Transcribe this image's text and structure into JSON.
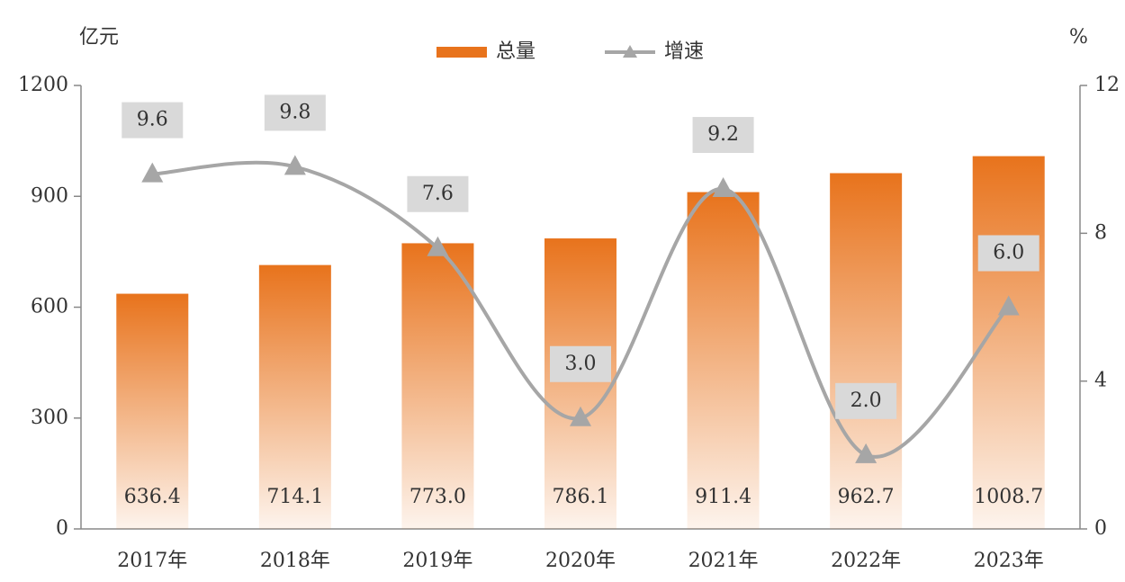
{
  "chart_data": {
    "type": "bar",
    "y_unit": "亿元",
    "y2_unit": "%",
    "categories": [
      "2017年",
      "2018年",
      "2019年",
      "2020年",
      "2021年",
      "2022年",
      "2023年"
    ],
    "series": [
      {
        "name": "总量",
        "type": "bar",
        "color": "#e8731c",
        "values": [
          636.4,
          714.1,
          773.0,
          786.1,
          911.4,
          962.7,
          1008.7
        ],
        "value_labels": [
          "636.4",
          "714.1",
          "773.0",
          "786.1",
          "911.4",
          "962.7",
          "1008.7"
        ]
      },
      {
        "name": "增速",
        "type": "line",
        "axis": "y2",
        "color": "#a6a6a6",
        "values": [
          9.6,
          9.8,
          7.6,
          3.0,
          9.2,
          2.0,
          6.0
        ],
        "value_labels": [
          "9.6",
          "9.8",
          "7.6",
          "3.0",
          "9.2",
          "2.0",
          "6.0"
        ]
      }
    ],
    "ylim": [
      0,
      1200
    ],
    "yticks": [
      0,
      300,
      600,
      900,
      1200
    ],
    "y2lim": [
      0,
      12
    ],
    "y2ticks": [
      0,
      4,
      8,
      12
    ]
  }
}
